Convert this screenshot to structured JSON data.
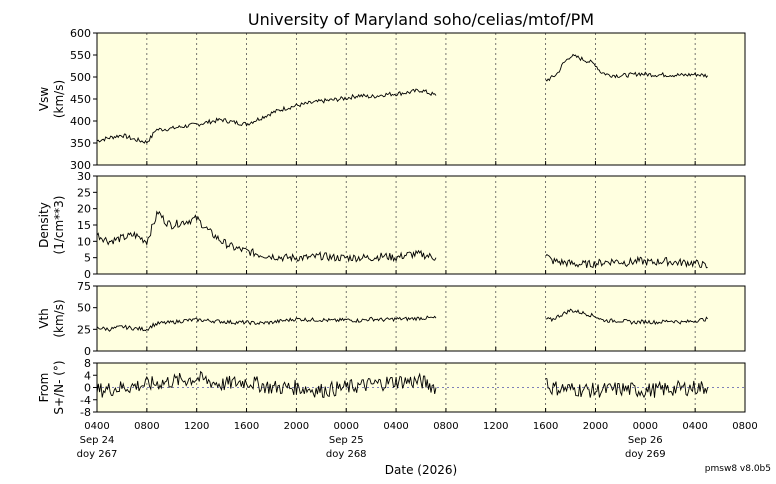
{
  "title": "University of Maryland  soho/celias/mtof/PM",
  "version": "pmsw8 v8.0b5",
  "xlabel": "Date (2026)",
  "colors": {
    "panel_bg": "#ffffe0",
    "line": "#000000",
    "grid": "#555555",
    "zero_line": "#5555aa"
  },
  "chart_data": {
    "type": "line",
    "x_axis": {
      "hour_start": 4,
      "hour_end": 56,
      "ticks": [
        {
          "h": 4,
          "label": "0400",
          "date": "Sep 24",
          "doy": "doy 267"
        },
        {
          "h": 8,
          "label": "0800"
        },
        {
          "h": 12,
          "label": "1200"
        },
        {
          "h": 16,
          "label": "1600"
        },
        {
          "h": 20,
          "label": "2000"
        },
        {
          "h": 24,
          "label": "0000",
          "date": "Sep 25",
          "doy": "doy 268"
        },
        {
          "h": 28,
          "label": "0400"
        },
        {
          "h": 32,
          "label": "0800"
        },
        {
          "h": 36,
          "label": "1200"
        },
        {
          "h": 40,
          "label": "1600"
        },
        {
          "h": 44,
          "label": "2000"
        },
        {
          "h": 48,
          "label": "0000",
          "date": "Sep 26",
          "doy": "doy 269"
        },
        {
          "h": 52,
          "label": "0400"
        },
        {
          "h": 56,
          "label": "0800"
        }
      ]
    },
    "panels": [
      {
        "name": "vsw",
        "ylabel": [
          "Vsw",
          "(km/s)"
        ],
        "ylim": [
          300,
          600
        ],
        "yticks": [
          300,
          350,
          400,
          450,
          500,
          550,
          600
        ],
        "zero_line": false,
        "segments": [
          [
            [
              4.0,
              355
            ],
            [
              5.0,
              362
            ],
            [
              6.0,
              368
            ],
            [
              7.0,
              358
            ],
            [
              8.0,
              352
            ],
            [
              8.4,
              365
            ],
            [
              8.7,
              380
            ],
            [
              10.0,
              383
            ],
            [
              11.0,
              388
            ],
            [
              12.0,
              392
            ],
            [
              13.0,
              398
            ],
            [
              14.0,
              403
            ],
            [
              15.0,
              397
            ],
            [
              16.0,
              393
            ],
            [
              17.0,
              405
            ],
            [
              18.0,
              418
            ],
            [
              19.0,
              428
            ],
            [
              20.0,
              435
            ],
            [
              21.0,
              440
            ],
            [
              22.0,
              445
            ],
            [
              23.0,
              448
            ],
            [
              24.0,
              452
            ],
            [
              25.0,
              458
            ],
            [
              26.0,
              455
            ],
            [
              27.0,
              460
            ],
            [
              28.0,
              462
            ],
            [
              29.0,
              465
            ],
            [
              30.0,
              470
            ],
            [
              31.2,
              458
            ]
          ],
          [
            [
              40.0,
              492
            ],
            [
              40.6,
              500
            ],
            [
              41.0,
              510
            ],
            [
              41.4,
              530
            ],
            [
              42.0,
              548
            ],
            [
              42.5,
              545
            ],
            [
              43.0,
              540
            ],
            [
              43.5,
              535
            ],
            [
              44.0,
              528
            ],
            [
              44.4,
              512
            ],
            [
              45.0,
              505
            ],
            [
              46.0,
              503
            ],
            [
              47.0,
              505
            ],
            [
              47.5,
              508
            ],
            [
              48.0,
              506
            ],
            [
              49.0,
              505
            ],
            [
              50.0,
              505
            ],
            [
              51.0,
              504
            ],
            [
              52.0,
              506
            ],
            [
              53.0,
              503
            ]
          ]
        ],
        "noise": 5
      },
      {
        "name": "density",
        "ylabel": [
          "Density",
          "(1/cm**3)"
        ],
        "ylim": [
          0,
          30
        ],
        "yticks": [
          0,
          5,
          10,
          15,
          20,
          25,
          30
        ],
        "zero_line": false,
        "segments": [
          [
            [
              4.0,
              12
            ],
            [
              5.0,
              10
            ],
            [
              6.0,
              11
            ],
            [
              7.0,
              12
            ],
            [
              8.0,
              10
            ],
            [
              8.4,
              14
            ],
            [
              8.9,
              19
            ],
            [
              9.5,
              16
            ],
            [
              10.0,
              15
            ],
            [
              11.0,
              16
            ],
            [
              12.0,
              17
            ],
            [
              13.0,
              13
            ],
            [
              14.0,
              10
            ],
            [
              15.0,
              8
            ],
            [
              16.0,
              7
            ],
            [
              17.0,
              6
            ],
            [
              18.0,
              5.5
            ],
            [
              19.0,
              5
            ],
            [
              20.0,
              5
            ],
            [
              21.0,
              5
            ],
            [
              22.0,
              5.5
            ],
            [
              23.0,
              5
            ],
            [
              24.0,
              5
            ],
            [
              25.0,
              5
            ],
            [
              26.0,
              5
            ],
            [
              27.0,
              5.5
            ],
            [
              28.0,
              5
            ],
            [
              29.0,
              6
            ],
            [
              30.0,
              6
            ],
            [
              31.2,
              5
            ]
          ],
          [
            [
              40.0,
              6
            ],
            [
              40.5,
              4
            ],
            [
              41.5,
              3.5
            ],
            [
              42.5,
              3
            ],
            [
              43.5,
              3
            ],
            [
              44.5,
              3.5
            ],
            [
              45.5,
              4
            ],
            [
              46.5,
              3.5
            ],
            [
              47.5,
              4
            ],
            [
              48.5,
              3.5
            ],
            [
              49.5,
              4
            ],
            [
              50.5,
              3.5
            ],
            [
              51.5,
              3.5
            ],
            [
              52.5,
              3
            ],
            [
              53.0,
              2
            ]
          ]
        ],
        "noise": 1.2
      },
      {
        "name": "vth",
        "ylabel": [
          "Vth",
          "(km/s)"
        ],
        "ylim": [
          0,
          75
        ],
        "yticks": [
          0,
          25,
          50,
          75
        ],
        "zero_line": false,
        "segments": [
          [
            [
              4.0,
              27
            ],
            [
              5.0,
              25
            ],
            [
              6.0,
              28
            ],
            [
              7.0,
              26
            ],
            [
              8.0,
              25
            ],
            [
              8.5,
              30
            ],
            [
              9.0,
              32
            ],
            [
              10.0,
              33
            ],
            [
              11.0,
              35
            ],
            [
              12.0,
              36
            ],
            [
              13.0,
              35
            ],
            [
              14.0,
              34
            ],
            [
              15.0,
              33
            ],
            [
              16.0,
              33
            ],
            [
              17.0,
              32
            ],
            [
              18.0,
              33
            ],
            [
              19.0,
              35
            ],
            [
              20.0,
              37
            ],
            [
              21.0,
              36
            ],
            [
              22.0,
              36
            ],
            [
              23.0,
              35
            ],
            [
              24.0,
              36
            ],
            [
              25.0,
              35
            ],
            [
              26.0,
              37
            ],
            [
              27.0,
              36
            ],
            [
              28.0,
              37
            ],
            [
              29.0,
              37
            ],
            [
              30.0,
              38
            ],
            [
              31.2,
              38
            ]
          ],
          [
            [
              40.0,
              37
            ],
            [
              40.5,
              36
            ],
            [
              41.0,
              40
            ],
            [
              42.0,
              47
            ],
            [
              43.0,
              44
            ],
            [
              44.0,
              40
            ],
            [
              44.5,
              36
            ],
            [
              45.0,
              35
            ],
            [
              46.0,
              35
            ],
            [
              47.0,
              33
            ],
            [
              48.0,
              34
            ],
            [
              49.0,
              33
            ],
            [
              50.0,
              35
            ],
            [
              51.0,
              33
            ],
            [
              52.0,
              35
            ],
            [
              53.0,
              37
            ]
          ]
        ],
        "noise": 2.2
      },
      {
        "name": "flow-angle",
        "ylabel": [
          "From",
          "S+/N- (°)"
        ],
        "ylim": [
          -8,
          8
        ],
        "yticks": [
          -8,
          -4,
          0,
          4,
          8
        ],
        "ticklabels": [
          "-8",
          "-4",
          "0",
          "4",
          "8"
        ],
        "zero_line": true,
        "segments": [
          [
            [
              4.0,
              -1
            ],
            [
              6.0,
              0
            ],
            [
              8.0,
              1
            ],
            [
              10.0,
              2
            ],
            [
              12.0,
              3
            ],
            [
              14.0,
              1
            ],
            [
              16.0,
              2
            ],
            [
              18.0,
              0
            ],
            [
              20.0,
              0
            ],
            [
              22.0,
              -1
            ],
            [
              24.0,
              0
            ],
            [
              26.0,
              1
            ],
            [
              28.0,
              2
            ],
            [
              30.0,
              2
            ],
            [
              31.2,
              0
            ]
          ],
          [
            [
              40.0,
              3
            ],
            [
              40.3,
              0
            ],
            [
              42.0,
              -0.5
            ],
            [
              44.0,
              -1
            ],
            [
              46.0,
              -0.5
            ],
            [
              48.0,
              -1
            ],
            [
              50.0,
              -0.5
            ],
            [
              52.0,
              0
            ],
            [
              53.0,
              0
            ]
          ]
        ],
        "noise": 2.5
      }
    ]
  }
}
